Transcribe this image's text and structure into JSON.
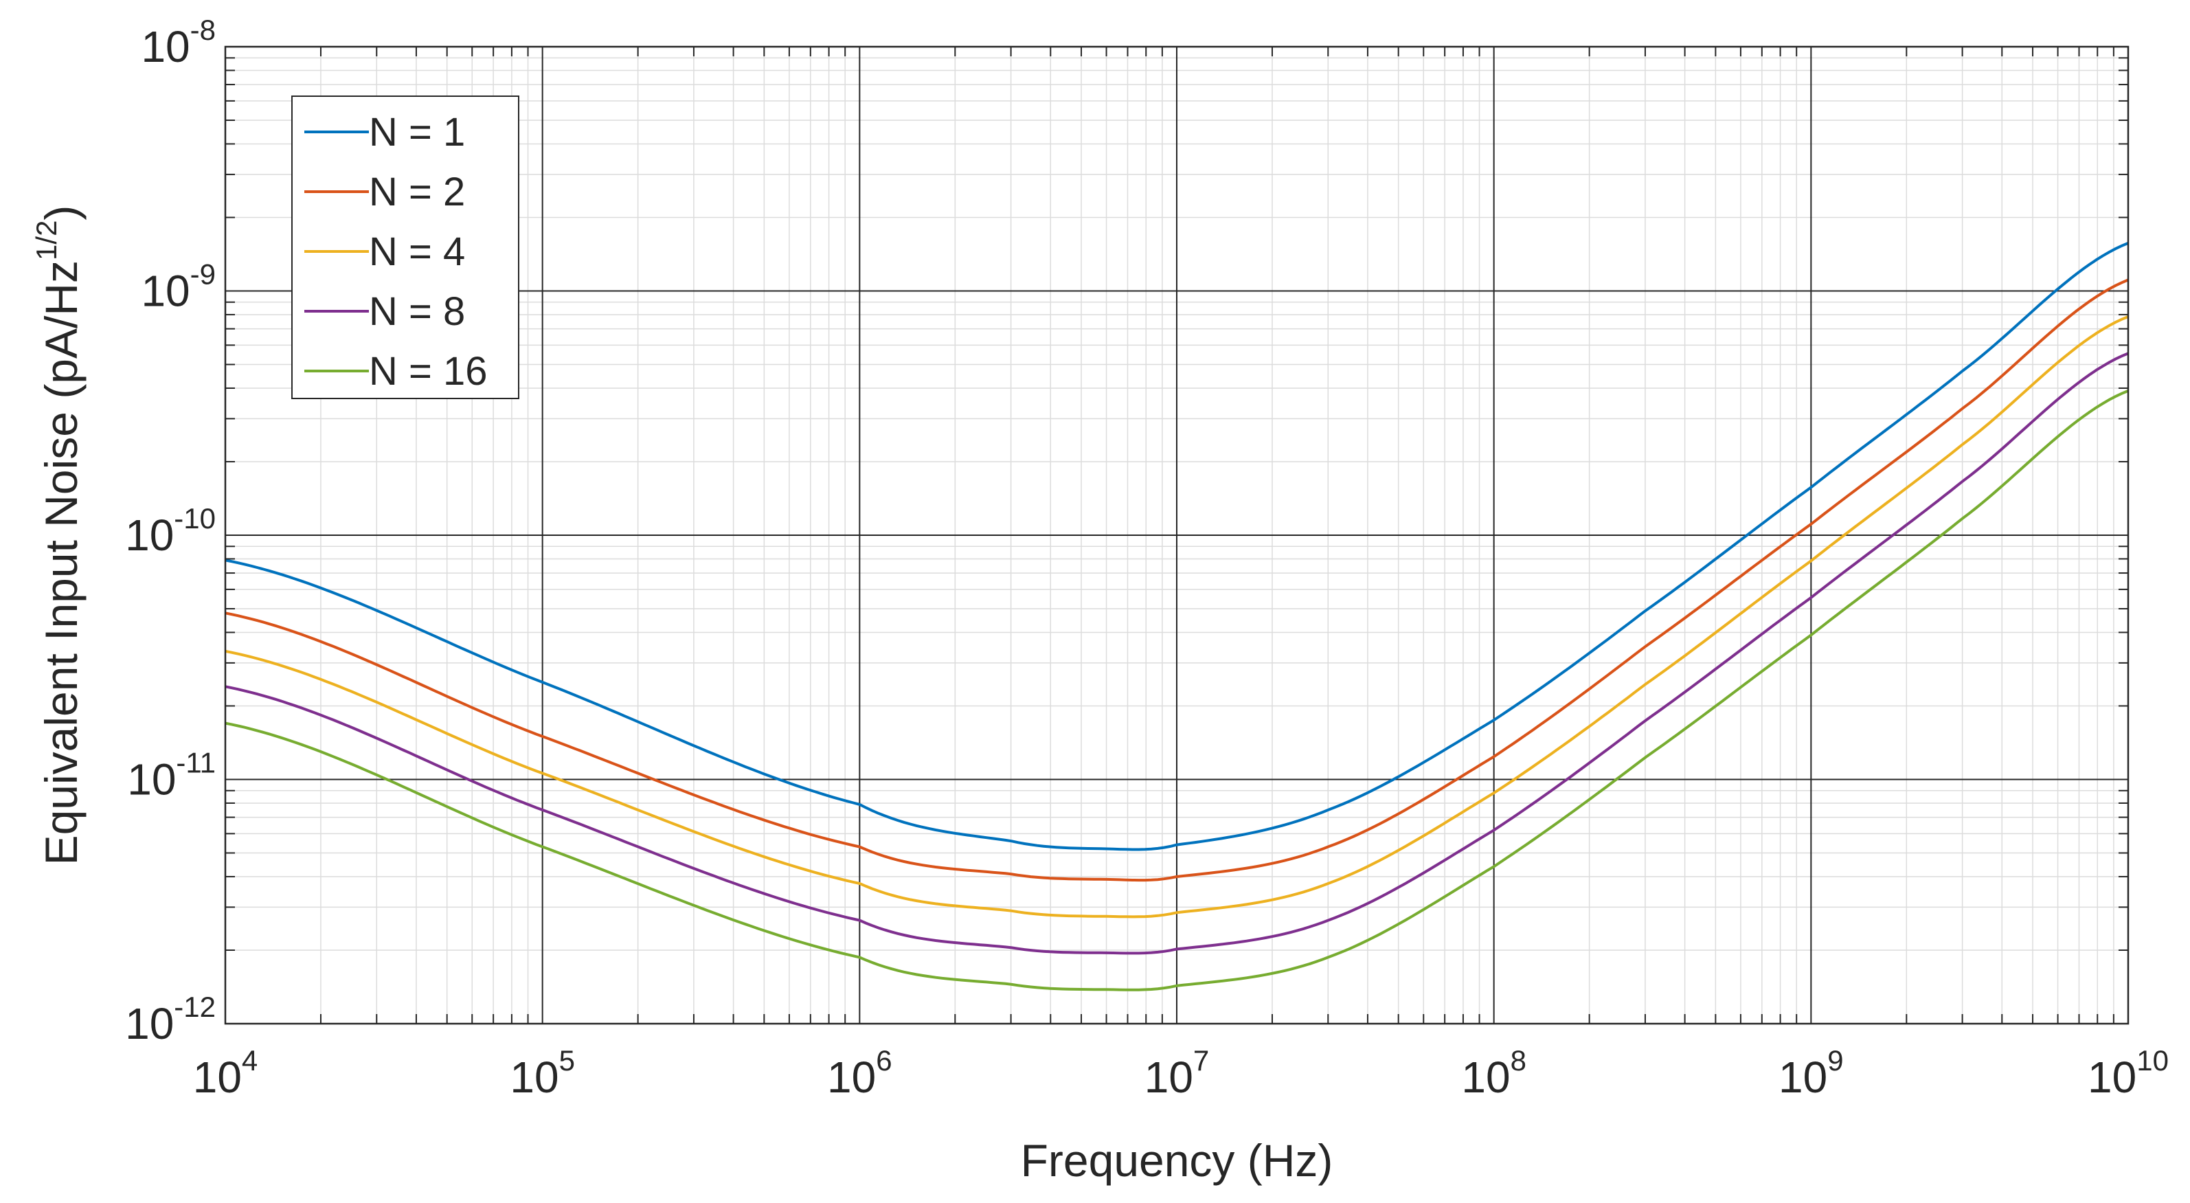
{
  "chart_data": {
    "type": "line",
    "title": "",
    "xlabel": "Frequency (Hz)",
    "ylabel": "Equivalent Input Noise (pA/Hz",
    "ylabel_exp": "1/2",
    "ylabel_close": ")",
    "xscale": "log",
    "yscale": "log",
    "xlim": [
      10000,
      10000000000
    ],
    "ylim": [
      1e-12,
      1e-08
    ],
    "grid": "on",
    "legend_position": "top-left",
    "x_ticks": [
      {
        "base": "10",
        "exp": "4",
        "value": 10000
      },
      {
        "base": "10",
        "exp": "5",
        "value": 100000
      },
      {
        "base": "10",
        "exp": "6",
        "value": 1000000
      },
      {
        "base": "10",
        "exp": "7",
        "value": 10000000
      },
      {
        "base": "10",
        "exp": "8",
        "value": 100000000
      },
      {
        "base": "10",
        "exp": "9",
        "value": 1000000000
      },
      {
        "base": "10",
        "exp": "10",
        "value": 10000000000
      }
    ],
    "y_ticks": [
      {
        "base": "10",
        "exp": "-12",
        "value": 1e-12
      },
      {
        "base": "10",
        "exp": "-11",
        "value": 1e-11
      },
      {
        "base": "10",
        "exp": "-10",
        "value": 1e-10
      },
      {
        "base": "10",
        "exp": "-9",
        "value": 1e-09
      },
      {
        "base": "10",
        "exp": "-8",
        "value": 1e-08
      }
    ],
    "series": [
      {
        "name": "N = 1",
        "color": "#0072BD",
        "x": [
          10000.0,
          100000.0,
          1000000.0,
          3000000.0,
          6000000.0,
          10000000.0,
          30000000.0,
          100000000.0,
          300000000.0,
          1000000000.0,
          3000000000.0,
          10000000000.0
        ],
        "values": [
          7.9e-11,
          2.5e-11,
          7.9e-12,
          5.6e-12,
          5.2e-12,
          5.4e-12,
          7.5e-12,
          1.75e-11,
          4.9e-11,
          1.57e-10,
          4.7e-10,
          1.57e-09
        ]
      },
      {
        "name": "N = 2",
        "color": "#D95319",
        "x": [
          10000.0,
          100000.0,
          1000000.0,
          3000000.0,
          6000000.0,
          10000000.0,
          30000000.0,
          100000000.0,
          300000000.0,
          1000000000.0,
          3000000000.0,
          10000000000.0
        ],
        "values": [
          4.8e-11,
          1.5e-11,
          5.3e-12,
          4.1e-12,
          3.9e-12,
          4e-12,
          5.3e-12,
          1.24e-11,
          3.5e-11,
          1.11e-10,
          3.3e-10,
          1.11e-09
        ]
      },
      {
        "name": "N = 4",
        "color": "#EDB120",
        "x": [
          10000.0,
          100000.0,
          1000000.0,
          3000000.0,
          6000000.0,
          10000000.0,
          30000000.0,
          100000000.0,
          300000000.0,
          1000000000.0,
          3000000000.0,
          10000000000.0
        ],
        "values": [
          3.35e-11,
          1.06e-11,
          3.75e-12,
          2.9e-12,
          2.75e-12,
          2.85e-12,
          3.75e-12,
          8.8e-12,
          2.45e-11,
          7.85e-11,
          2.35e-10,
          7.85e-10
        ]
      },
      {
        "name": "N = 8",
        "color": "#7E2F8E",
        "x": [
          10000.0,
          100000.0,
          1000000.0,
          3000000.0,
          6000000.0,
          10000000.0,
          30000000.0,
          100000000.0,
          300000000.0,
          1000000000.0,
          3000000000.0,
          10000000000.0
        ],
        "values": [
          2.4e-11,
          7.5e-12,
          2.65e-12,
          2.05e-12,
          1.95e-12,
          2.02e-12,
          2.65e-12,
          6.2e-12,
          1.74e-11,
          5.55e-11,
          1.66e-10,
          5.55e-10
        ]
      },
      {
        "name": "N = 16",
        "color": "#77AC30",
        "x": [
          10000.0,
          100000.0,
          1000000.0,
          3000000.0,
          6000000.0,
          10000000.0,
          30000000.0,
          100000000.0,
          300000000.0,
          1000000000.0,
          3000000000.0,
          10000000000.0
        ],
        "values": [
          1.7e-11,
          5.3e-12,
          1.87e-12,
          1.45e-12,
          1.38e-12,
          1.43e-12,
          1.87e-12,
          4.4e-12,
          1.23e-11,
          3.9e-11,
          1.17e-10,
          3.9e-10
        ]
      }
    ]
  }
}
